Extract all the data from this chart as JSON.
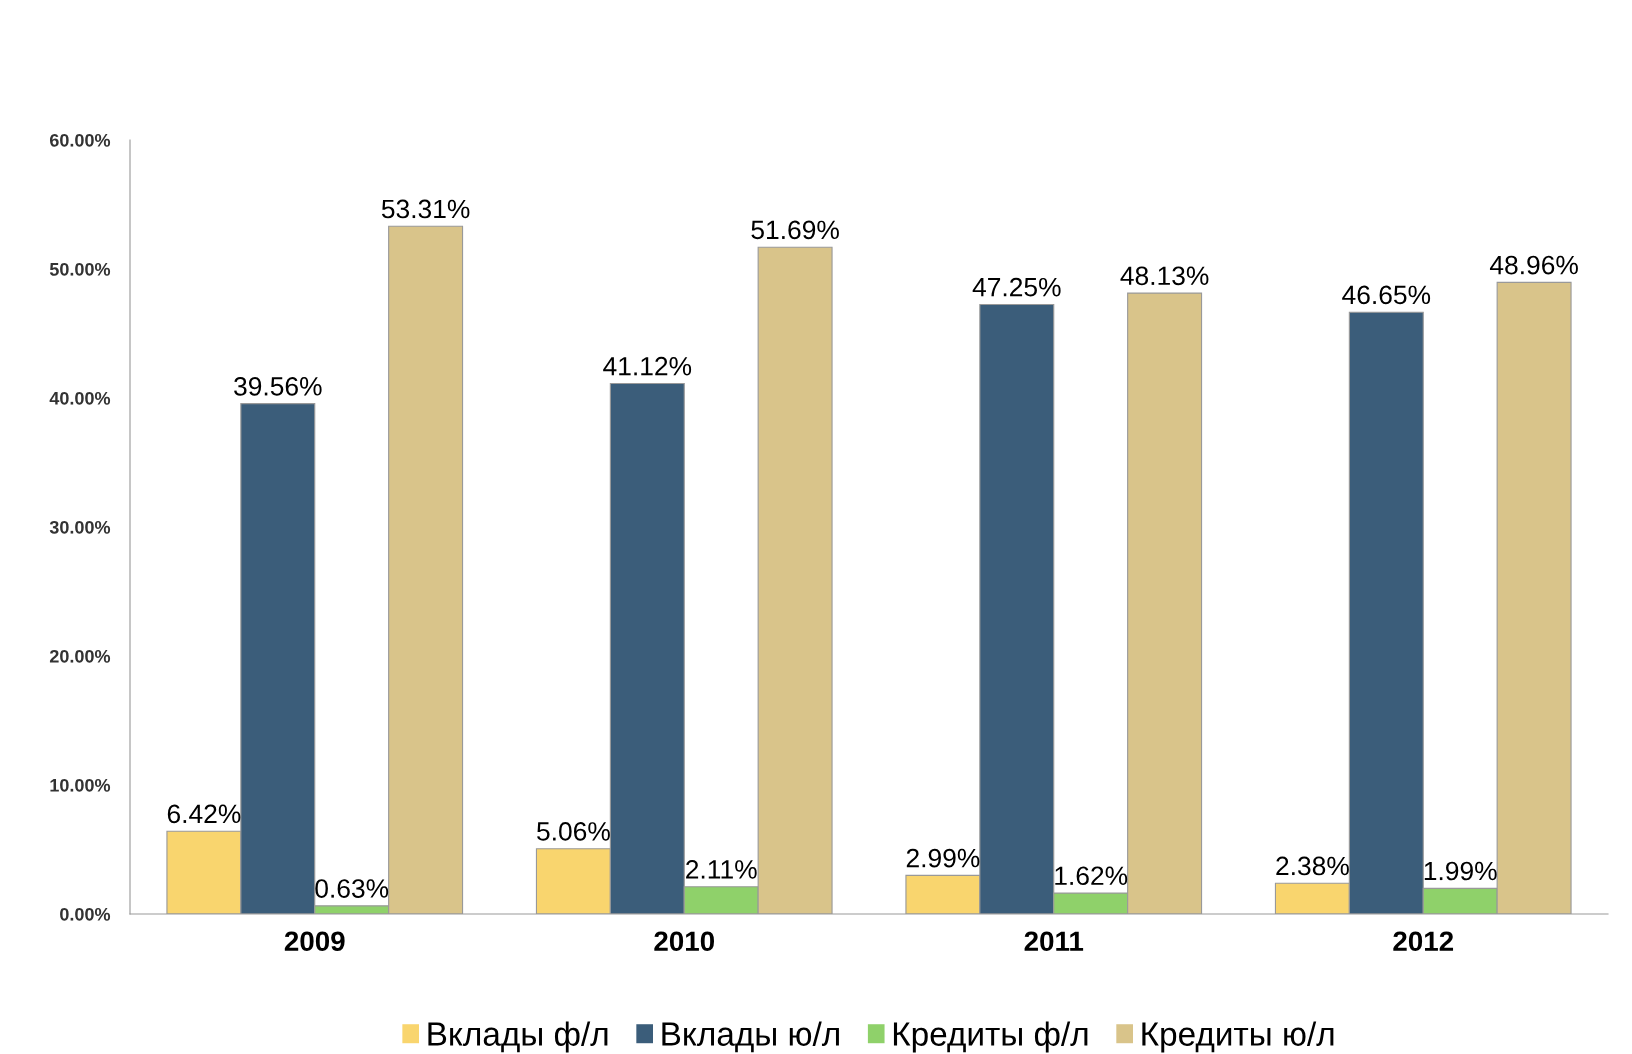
{
  "chart_data": {
    "type": "bar",
    "categories": [
      "2009",
      "2010",
      "2011",
      "2012"
    ],
    "series": [
      {
        "name": "Вклады ф/л",
        "color": "#f9d56e",
        "values": [
          6.42,
          5.06,
          2.99,
          2.38
        ],
        "value_labels": [
          "6.42%",
          "5.06%",
          "2.99%",
          "2.38%"
        ]
      },
      {
        "name": "Вклады ю/л",
        "color": "#3b5d7a",
        "values": [
          39.56,
          41.12,
          47.25,
          46.65
        ],
        "value_labels": [
          "39.56%",
          "41.12%",
          "47.25%",
          "46.65%"
        ]
      },
      {
        "name": "Кредиты ф/л",
        "color": "#8fd16a",
        "values": [
          0.63,
          2.11,
          1.62,
          1.99
        ],
        "value_labels": [
          "0.63%",
          "2.11%",
          "1.62%",
          "1.99%"
        ]
      },
      {
        "name": "Кредиты ю/л",
        "color": "#d9c48a",
        "values": [
          53.31,
          51.69,
          48.13,
          48.96
        ],
        "value_labels": [
          "53.31%",
          "51.69%",
          "48.13%",
          "48.96%"
        ]
      }
    ],
    "ylim": [
      0,
      60
    ],
    "yticks": [
      {
        "value": 0,
        "label": "0.00%"
      },
      {
        "value": 10,
        "label": "10.00%"
      },
      {
        "value": 20,
        "label": "20.00%"
      },
      {
        "value": 30,
        "label": "30.00%"
      },
      {
        "value": 40,
        "label": "40.00%"
      },
      {
        "value": 50,
        "label": "50.00%"
      },
      {
        "value": 60,
        "label": "60.00%"
      }
    ],
    "grid": false,
    "legend": "bottom"
  }
}
